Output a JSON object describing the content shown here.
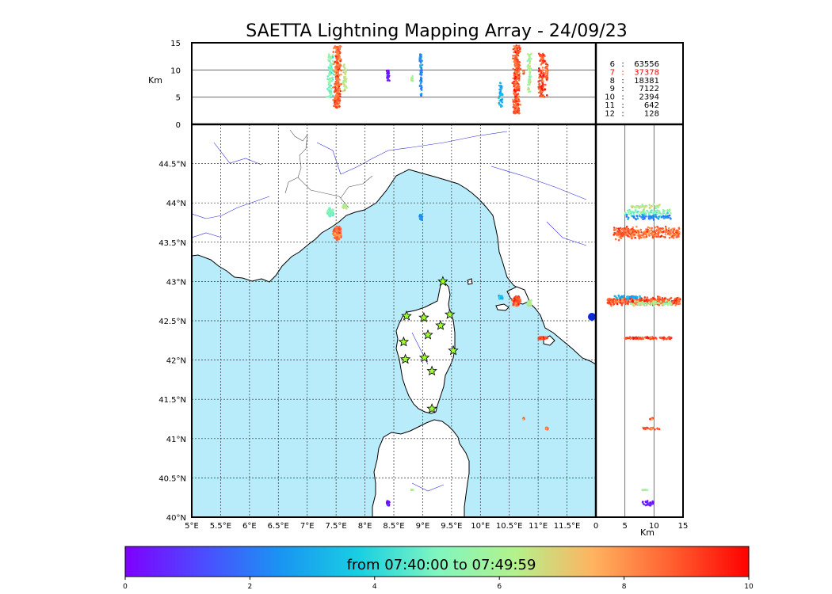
{
  "chart_data": {
    "type": "scatter",
    "title": "SAETTA Lightning Mapping Array - 24/09/23",
    "map": {
      "x_ticks": [
        "5°E",
        "5.5°E",
        "6°E",
        "6.5°E",
        "7°E",
        "7.5°E",
        "8°E",
        "8.5°E",
        "9°E",
        "9.5°E",
        "10°E",
        "10.5°E",
        "11°E",
        "11.5°E"
      ],
      "y_ticks": [
        "40°N",
        "40.5°N",
        "41°N",
        "41.5°N",
        "42°N",
        "42.5°N",
        "43°N",
        "43.5°N",
        "44°N",
        "44.5°N"
      ],
      "xlim": [
        5,
        12
      ],
      "ylim": [
        40,
        45
      ],
      "grid": true,
      "sea_color": "#b9ecfb",
      "land_color": "#ffffff"
    },
    "top_panel": {
      "ylabel": "Km",
      "y_ticks": [
        "0",
        "5",
        "10",
        "15"
      ],
      "ylim": [
        0,
        15
      ]
    },
    "side_panel": {
      "xlabel": "Km",
      "x_ticks": [
        "0",
        "5",
        "10",
        "15"
      ],
      "xlim": [
        0,
        15
      ]
    },
    "counts": [
      {
        "label": "6",
        "value": "63556",
        "color": "#000000"
      },
      {
        "label": "7",
        "value": "37378",
        "color": "#ff0000"
      },
      {
        "label": "8",
        "value": "18381",
        "color": "#000000"
      },
      {
        "label": "9",
        "value": "7122",
        "color": "#000000"
      },
      {
        "label": "10",
        "value": "2394",
        "color": "#000000"
      },
      {
        "label": "11",
        "value": "642",
        "color": "#000000"
      },
      {
        "label": "12",
        "value": "128",
        "color": "#000000"
      }
    ],
    "stations": [
      {
        "lon": 9.35,
        "lat": 43.0
      },
      {
        "lon": 8.72,
        "lat": 42.56
      },
      {
        "lon": 9.02,
        "lat": 42.54
      },
      {
        "lon": 9.47,
        "lat": 42.58
      },
      {
        "lon": 9.31,
        "lat": 42.44
      },
      {
        "lon": 9.09,
        "lat": 42.32
      },
      {
        "lon": 8.67,
        "lat": 42.23
      },
      {
        "lon": 9.53,
        "lat": 42.12
      },
      {
        "lon": 8.7,
        "lat": 42.01
      },
      {
        "lon": 9.03,
        "lat": 42.03
      },
      {
        "lon": 9.16,
        "lat": 41.86
      },
      {
        "lon": 9.16,
        "lat": 41.38
      }
    ],
    "clusters": [
      {
        "lon": 7.52,
        "lat": 43.62,
        "lon_spread": 0.08,
        "lat_spread": 0.1,
        "alt_min": 3,
        "alt_max": 14.5,
        "time": 8.6,
        "n": 320
      },
      {
        "lon": 7.4,
        "lat": 43.88,
        "lon_spread": 0.07,
        "lat_spread": 0.07,
        "alt_min": 5,
        "alt_max": 13,
        "time": 5.2,
        "n": 90
      },
      {
        "lon": 7.65,
        "lat": 43.96,
        "lon_spread": 0.05,
        "lat_spread": 0.04,
        "alt_min": 6,
        "alt_max": 11,
        "time": 6.4,
        "n": 40
      },
      {
        "lon": 8.4,
        "lat": 40.17,
        "lon_spread": 0.03,
        "lat_spread": 0.05,
        "alt_min": 8,
        "alt_max": 10,
        "time": 0.5,
        "n": 30
      },
      {
        "lon": 8.97,
        "lat": 43.82,
        "lon_spread": 0.03,
        "lat_spread": 0.04,
        "alt_min": 5,
        "alt_max": 13,
        "time": 2.4,
        "n": 60
      },
      {
        "lon": 10.63,
        "lat": 42.75,
        "lon_spread": 0.08,
        "lat_spread": 0.07,
        "alt_min": 2,
        "alt_max": 14.5,
        "time": 8.8,
        "n": 340
      },
      {
        "lon": 10.35,
        "lat": 42.8,
        "lon_spread": 0.05,
        "lat_spread": 0.03,
        "alt_min": 3,
        "alt_max": 8,
        "time": 3.2,
        "n": 40
      },
      {
        "lon": 10.85,
        "lat": 42.72,
        "lon_spread": 0.05,
        "lat_spread": 0.05,
        "alt_min": 6,
        "alt_max": 13,
        "time": 6.0,
        "n": 60
      },
      {
        "lon": 11.07,
        "lat": 42.28,
        "lon_spread": 0.1,
        "lat_spread": 0.02,
        "alt_min": 5,
        "alt_max": 13,
        "time": 9.0,
        "n": 110
      },
      {
        "lon": 11.15,
        "lat": 41.13,
        "lon_spread": 0.03,
        "lat_spread": 0.02,
        "alt_min": 8,
        "alt_max": 11,
        "time": 9.0,
        "n": 30
      },
      {
        "lon": 10.75,
        "lat": 41.25,
        "lon_spread": 0.02,
        "lat_spread": 0.02,
        "alt_min": 9,
        "alt_max": 10,
        "time": 8.6,
        "n": 8
      },
      {
        "lon": 8.82,
        "lat": 40.35,
        "lon_spread": 0.03,
        "lat_spread": 0.03,
        "alt_min": 8,
        "alt_max": 9,
        "time": 5.8,
        "n": 8
      }
    ],
    "colorbar": {
      "label": "from 07:40:00 to 07:49:59",
      "ticks": [
        "0",
        "2",
        "4",
        "6",
        "8",
        "10"
      ],
      "range": [
        0,
        10
      ]
    }
  }
}
